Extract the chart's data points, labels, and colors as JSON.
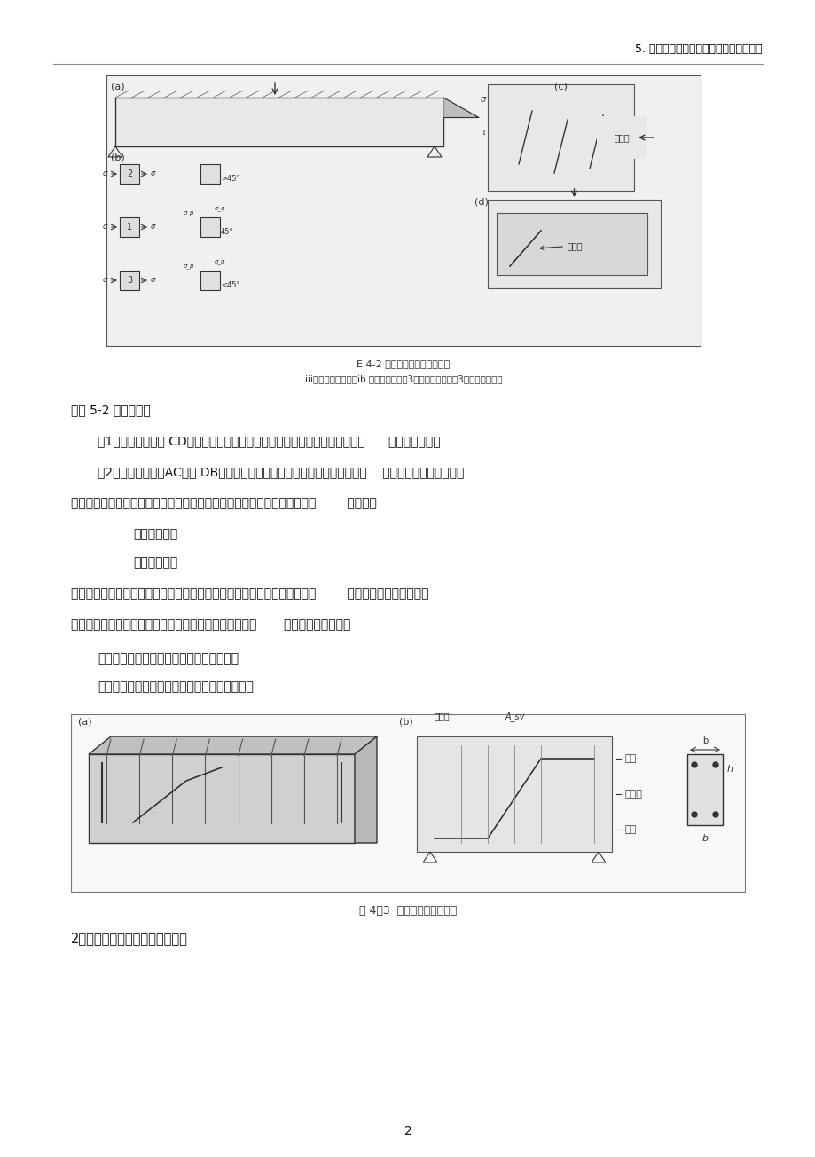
{
  "title_right": "5. 钢筋混凝土受弯构件斜截面承载力计算",
  "page_number": "2",
  "bg_color": "#ffffff",
  "line_color": "#000000",
  "text_color": "#000000",
  "fig_caption1": "E 4-2 梁的应力状态斜裂缝形态",
  "fig_caption2": "iii）主应力迹骨；（ib 申元壮应力：；3）弯剪型斜骨数；3》脱的期斜裂缝",
  "para1": "由图 5-2 可以看出：",
  "para2": "（1）、在纯弯段（ CD段），最大主拉应力出现在梁截面的下边缘，主拉应力      方向是水平的。",
  "para3": "（2）、在剪弯段（AC段和 DB段），截面上同时作用有正应力和剪应力，主    拉应力的方向是倾斜的。",
  "para4": "试验表明，钢筋混凝土简支梁中，斜截面上斜裂缝的出现过程，呈现两种典        型情况。",
  "para5a": "弯剪斜裂缝。",
  "para5b": "腹剪斜裂缝。",
  "para6": "发生斜截面破坏，斜裂缝的出现和发展，使梁内应力的分布和数值发生变化        （应力重分布），最终导",
  "para7": "致在剪力较大的近支座区段内不同部位的混凝土被压碎或       拉坏而丧失承载力。",
  "para8a": "有腹筋梁：有箍筋、弯筋和纵向钢筋的梁；",
  "para8b": "无腹筋梁：无箍筋和弯筋，但有纵向钢筋的梁；",
  "para9": "2、无腹筋梁的受力及破坏分析。"
}
